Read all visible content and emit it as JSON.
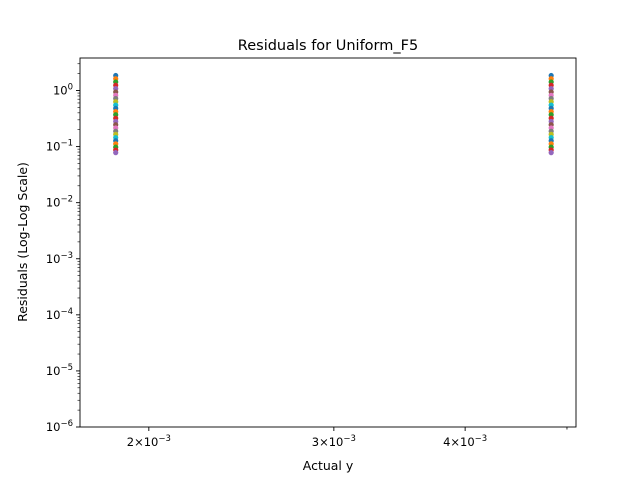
{
  "chart_data": {
    "type": "scatter",
    "title": "Residuals for Uniform_F5",
    "xlabel": "Actual y",
    "ylabel": "Residuals (Log-Log Scale)",
    "x_scale": "log",
    "y_scale": "log",
    "xlim": [
      0.00172,
      0.0051
    ],
    "ylim": [
      1e-06,
      3.8
    ],
    "x_ticks": [
      {
        "value": 0.002,
        "mantissa": "2",
        "exp": "−3"
      },
      {
        "value": 0.003,
        "mantissa": "3",
        "exp": "−3"
      },
      {
        "value": 0.004,
        "mantissa": "4",
        "exp": "−3"
      }
    ],
    "x_minor_ticks": [
      0.005
    ],
    "y_ticks": [
      {
        "value": 1,
        "exp": "0"
      },
      {
        "value": 0.1,
        "exp": "−1"
      },
      {
        "value": 0.01,
        "exp": "−2"
      },
      {
        "value": 0.001,
        "exp": "−3"
      },
      {
        "value": 0.0001,
        "exp": "−4"
      },
      {
        "value": 1e-05,
        "exp": "−5"
      },
      {
        "value": 1e-06,
        "exp": "−6"
      }
    ],
    "grid": false,
    "legend": "none",
    "series_colors": [
      "#1f77b4",
      "#ff7f0e",
      "#2ca02c",
      "#d62728",
      "#9467bd",
      "#8c564b",
      "#e377c2",
      "#7f7f7f",
      "#bcbd22",
      "#17becf"
    ],
    "x_groups": [
      0.00186,
      0.00483
    ],
    "residuals": [
      1.85,
      1.62,
      1.42,
      1.24,
      1.08,
      0.94,
      0.82,
      0.72,
      0.63,
      0.55,
      0.48,
      0.42,
      0.37,
      0.32,
      0.28,
      0.245,
      0.215,
      0.188,
      0.165,
      0.145,
      0.127,
      0.112,
      0.098,
      0.087,
      0.078
    ]
  }
}
